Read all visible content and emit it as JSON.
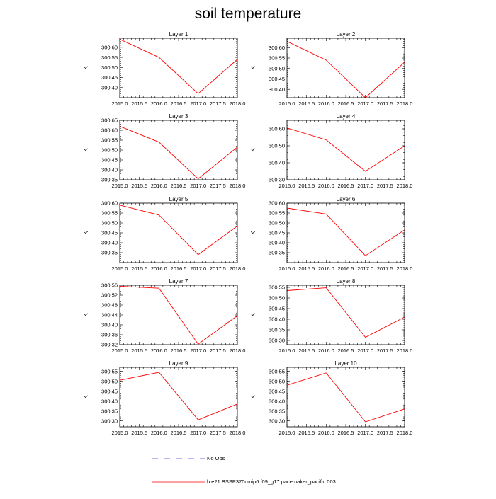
{
  "title": "soil temperature",
  "legend": {
    "items": [
      {
        "label": "No Obs",
        "color": "#3b3bd6",
        "style": "dashed"
      },
      {
        "label": "b.e21.BSSP370cmip6.f09_g17.pacemaker_pacific.003",
        "color": "#ff0000",
        "style": "solid"
      }
    ]
  },
  "chart_data": [
    {
      "type": "line",
      "title": "Layer 1",
      "ylabel": "K",
      "x": [
        2015,
        2016,
        2017,
        2018
      ],
      "xlim": [
        2015,
        2018
      ],
      "xticks": [
        "2015.0",
        "2015.5",
        "2016.0",
        "2016.5",
        "2017.0",
        "2017.5",
        "2018.0"
      ],
      "ylim": [
        300.35,
        300.645
      ],
      "yticks": [
        "300.40",
        "300.45",
        "300.50",
        "300.55",
        "300.60"
      ],
      "series": [
        {
          "name": "b.e21.BSSP370cmip6.f09_g17.pacemaker_pacific.003",
          "color": "#ff0000",
          "values": [
            300.64,
            300.55,
            300.37,
            300.54
          ]
        }
      ]
    },
    {
      "type": "line",
      "title": "Layer 2",
      "ylabel": "K",
      "x": [
        2015,
        2016,
        2017,
        2018
      ],
      "xlim": [
        2015,
        2018
      ],
      "xticks": [
        "2015.0",
        "2015.5",
        "2016.0",
        "2016.5",
        "2017.0",
        "2017.5",
        "2018.0"
      ],
      "ylim": [
        300.36,
        300.645
      ],
      "yticks": [
        "300.40",
        "300.45",
        "300.50",
        "300.55",
        "300.60"
      ],
      "series": [
        {
          "name": "b.e21.BSSP370cmip6.f09_g17.pacemaker_pacific.003",
          "color": "#ff0000",
          "values": [
            300.63,
            300.54,
            300.36,
            300.53
          ]
        }
      ]
    },
    {
      "type": "line",
      "title": "Layer 3",
      "ylabel": "K",
      "x": [
        2015,
        2016,
        2017,
        2018
      ],
      "xlim": [
        2015,
        2018
      ],
      "xticks": [
        "2015.0",
        "2015.5",
        "2016.0",
        "2016.5",
        "2017.0",
        "2017.5",
        "2018.0"
      ],
      "ylim": [
        300.35,
        300.65
      ],
      "yticks": [
        "300.35",
        "300.40",
        "300.45",
        "300.50",
        "300.55",
        "300.60",
        "300.65"
      ],
      "series": [
        {
          "name": "b.e21.BSSP370cmip6.f09_g17.pacemaker_pacific.003",
          "color": "#ff0000",
          "values": [
            300.62,
            300.54,
            300.355,
            300.515
          ]
        }
      ]
    },
    {
      "type": "line",
      "title": "Layer 4",
      "ylabel": "K",
      "x": [
        2015,
        2016,
        2017,
        2018
      ],
      "xlim": [
        2015,
        2018
      ],
      "xticks": [
        "2015.0",
        "2015.5",
        "2016.0",
        "2016.5",
        "2017.0",
        "2017.5",
        "2018.0"
      ],
      "ylim": [
        300.3,
        300.65
      ],
      "yticks": [
        "300.30",
        "300.40",
        "300.50",
        "300.60"
      ],
      "series": [
        {
          "name": "b.e21.BSSP370cmip6.f09_g17.pacemaker_pacific.003",
          "color": "#ff0000",
          "values": [
            300.605,
            300.535,
            300.35,
            300.5
          ]
        }
      ]
    },
    {
      "type": "line",
      "title": "Layer 5",
      "ylabel": "K",
      "x": [
        2015,
        2016,
        2017,
        2018
      ],
      "xlim": [
        2015,
        2018
      ],
      "xticks": [
        "2015.0",
        "2015.5",
        "2016.0",
        "2016.5",
        "2017.0",
        "2017.5",
        "2018.0"
      ],
      "ylim": [
        300.3,
        300.6
      ],
      "yticks": [
        "300.35",
        "300.40",
        "300.45",
        "300.50",
        "300.55",
        "300.60"
      ],
      "series": [
        {
          "name": "b.e21.BSSP370cmip6.f09_g17.pacemaker_pacific.003",
          "color": "#ff0000",
          "values": [
            300.59,
            300.54,
            300.34,
            300.485
          ]
        }
      ]
    },
    {
      "type": "line",
      "title": "Layer 6",
      "ylabel": "K",
      "x": [
        2015,
        2016,
        2017,
        2018
      ],
      "xlim": [
        2015,
        2018
      ],
      "xticks": [
        "2015.0",
        "2015.5",
        "2016.0",
        "2016.5",
        "2017.0",
        "2017.5",
        "2018.0"
      ],
      "ylim": [
        300.3,
        300.6
      ],
      "yticks": [
        "300.35",
        "300.40",
        "300.45",
        "300.50",
        "300.55",
        "300.60"
      ],
      "series": [
        {
          "name": "b.e21.BSSP370cmip6.f09_g17.pacemaker_pacific.003",
          "color": "#ff0000",
          "values": [
            300.575,
            300.545,
            300.335,
            300.465
          ]
        }
      ]
    },
    {
      "type": "line",
      "title": "Layer 7",
      "ylabel": "K",
      "x": [
        2015,
        2016,
        2017,
        2018
      ],
      "xlim": [
        2015,
        2018
      ],
      "xticks": [
        "2015.0",
        "2015.5",
        "2016.0",
        "2016.5",
        "2017.0",
        "2017.5",
        "2018.0"
      ],
      "ylim": [
        300.32,
        300.56
      ],
      "yticks": [
        "300.32",
        "300.36",
        "300.40",
        "300.44",
        "300.48",
        "300.52",
        "300.56"
      ],
      "series": [
        {
          "name": "b.e21.BSSP370cmip6.f09_g17.pacemaker_pacific.003",
          "color": "#ff0000",
          "values": [
            300.556,
            300.548,
            300.322,
            300.437
          ]
        }
      ]
    },
    {
      "type": "line",
      "title": "Layer 8",
      "ylabel": "K",
      "x": [
        2015,
        2016,
        2017,
        2018
      ],
      "xlim": [
        2015,
        2018
      ],
      "xticks": [
        "2015.0",
        "2015.5",
        "2016.0",
        "2016.5",
        "2017.0",
        "2017.5",
        "2018.0"
      ],
      "ylim": [
        300.28,
        300.56
      ],
      "yticks": [
        "300.30",
        "300.35",
        "300.40",
        "300.45",
        "300.50",
        "300.55"
      ],
      "series": [
        {
          "name": "b.e21.BSSP370cmip6.f09_g17.pacemaker_pacific.003",
          "color": "#ff0000",
          "values": [
            300.535,
            300.548,
            300.315,
            300.41
          ]
        }
      ]
    },
    {
      "type": "line",
      "title": "Layer 9",
      "ylabel": "K",
      "x": [
        2015,
        2016,
        2017,
        2018
      ],
      "xlim": [
        2015,
        2018
      ],
      "xticks": [
        "2015.0",
        "2015.5",
        "2016.0",
        "2016.5",
        "2017.0",
        "2017.5",
        "2018.0"
      ],
      "ylim": [
        300.27,
        300.57
      ],
      "yticks": [
        "300.30",
        "300.35",
        "300.40",
        "300.45",
        "300.50",
        "300.55"
      ],
      "series": [
        {
          "name": "b.e21.BSSP370cmip6.f09_g17.pacemaker_pacific.003",
          "color": "#ff0000",
          "values": [
            300.505,
            300.545,
            300.305,
            300.385
          ]
        }
      ]
    },
    {
      "type": "line",
      "title": "Layer 10",
      "ylabel": "K",
      "x": [
        2015,
        2016,
        2017,
        2018
      ],
      "xlim": [
        2015,
        2018
      ],
      "xticks": [
        "2015.0",
        "2015.5",
        "2016.0",
        "2016.5",
        "2017.0",
        "2017.5",
        "2018.0"
      ],
      "ylim": [
        300.27,
        300.57
      ],
      "yticks": [
        "300.30",
        "300.35",
        "300.40",
        "300.45",
        "300.50",
        "300.55"
      ],
      "series": [
        {
          "name": "b.e21.BSSP370cmip6.f09_g17.pacemaker_pacific.003",
          "color": "#ff0000",
          "values": [
            300.48,
            300.542,
            300.295,
            300.36
          ]
        }
      ]
    }
  ]
}
